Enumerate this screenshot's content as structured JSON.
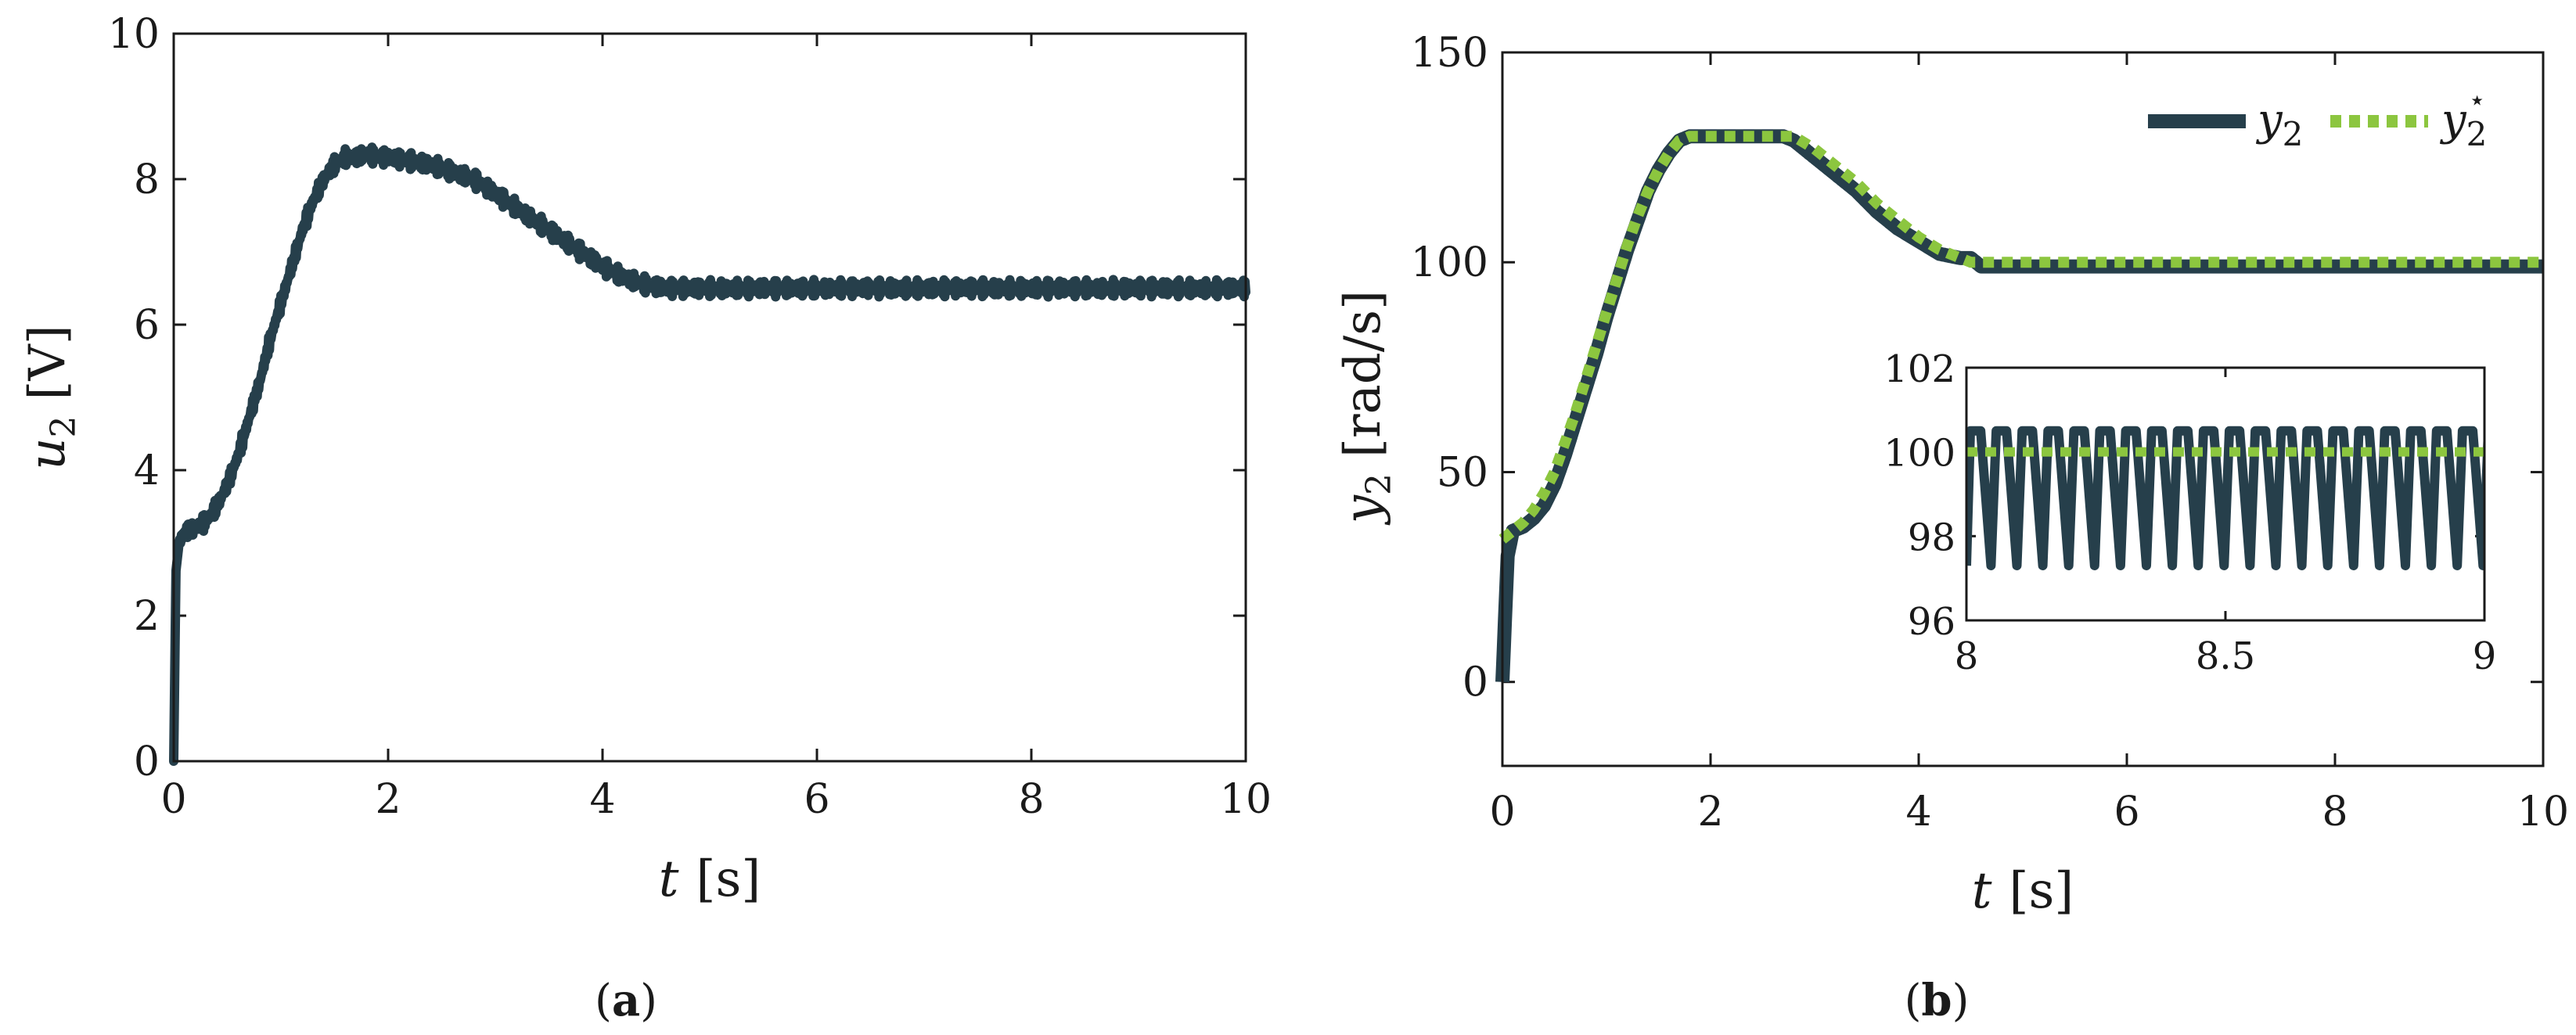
{
  "colors": {
    "measured": "#263f4b",
    "reference": "#8cc63f",
    "axis": "#1a1a1a"
  },
  "chart_data": [
    {
      "panel": "a",
      "caption_letter": "a",
      "type": "line",
      "xlabel_var": "t",
      "xlabel_unit": "[s]",
      "ylabel_var": "u",
      "ylabel_sub": "2",
      "ylabel_unit": "[V]",
      "xlim": [
        0,
        10
      ],
      "ylim": [
        0,
        10
      ],
      "xticks": [
        "0",
        "2",
        "4",
        "6",
        "8",
        "10"
      ],
      "yticks": [
        "0",
        "2",
        "4",
        "6",
        "8",
        "10"
      ],
      "grid": false,
      "series": [
        {
          "role": "measured",
          "noise_amplitude": 0.12,
          "x": [
            0,
            0.02,
            0.05,
            0.1,
            0.2,
            0.3,
            0.4,
            0.5,
            0.6,
            0.7,
            0.8,
            0.9,
            1.0,
            1.1,
            1.2,
            1.3,
            1.4,
            1.5,
            1.6,
            1.7,
            1.8,
            1.9,
            2.0,
            2.2,
            2.4,
            2.6,
            2.8,
            3.0,
            3.2,
            3.4,
            3.6,
            3.8,
            4.0,
            4.2,
            4.4,
            4.6,
            5.0,
            6.0,
            7.0,
            8.0,
            9.0,
            10.0
          ],
          "y": [
            0,
            2.6,
            3.0,
            3.15,
            3.2,
            3.3,
            3.5,
            3.8,
            4.2,
            4.7,
            5.2,
            5.8,
            6.3,
            6.8,
            7.3,
            7.7,
            8.0,
            8.2,
            8.3,
            8.3,
            8.35,
            8.3,
            8.3,
            8.25,
            8.2,
            8.1,
            8.0,
            7.8,
            7.6,
            7.4,
            7.2,
            7.0,
            6.8,
            6.65,
            6.55,
            6.5,
            6.5,
            6.5,
            6.5,
            6.5,
            6.5,
            6.5
          ]
        }
      ]
    },
    {
      "panel": "b",
      "caption_letter": "b",
      "type": "line",
      "xlabel_var": "t",
      "xlabel_unit": "[s]",
      "ylabel_var": "y",
      "ylabel_sub": "2",
      "ylabel_unit": "[rad/s]",
      "xlim": [
        0,
        10
      ],
      "ylim": [
        -20,
        150
      ],
      "xticks": [
        "0",
        "2",
        "4",
        "6",
        "8",
        "10"
      ],
      "yticks": [
        "0",
        "50",
        "100",
        "150"
      ],
      "grid": false,
      "legend_position": "top-right",
      "legend": [
        {
          "role": "measured",
          "var": "y",
          "sub": "2",
          "sup": ""
        },
        {
          "role": "reference",
          "var": "y",
          "sub": "2",
          "sup": "⋆"
        }
      ],
      "series": [
        {
          "role": "measured",
          "x": [
            0,
            0.05,
            0.1,
            0.2,
            0.3,
            0.4,
            0.5,
            0.6,
            0.7,
            0.8,
            0.9,
            1.0,
            1.1,
            1.2,
            1.3,
            1.4,
            1.5,
            1.6,
            1.7,
            1.8,
            2.0,
            2.2,
            2.4,
            2.6,
            2.7,
            2.8,
            3.0,
            3.2,
            3.4,
            3.6,
            3.8,
            4.0,
            4.2,
            4.4,
            4.5,
            4.6,
            5.0,
            6.0,
            7.0,
            8.0,
            9.0,
            10.0
          ],
          "y": [
            0,
            30,
            36,
            37,
            39,
            42,
            47,
            54,
            62,
            70,
            78,
            87,
            95,
            103,
            110,
            117,
            122,
            126,
            129,
            130,
            130,
            130,
            130,
            130,
            130,
            129,
            125,
            121,
            117,
            112,
            108,
            105,
            102,
            101,
            101,
            99,
            99,
            99,
            99,
            99,
            99,
            99
          ]
        },
        {
          "role": "reference",
          "x": [
            0,
            0.1,
            0.2,
            0.3,
            0.4,
            0.5,
            0.6,
            0.7,
            0.8,
            0.9,
            1.0,
            1.1,
            1.2,
            1.3,
            1.4,
            1.5,
            1.6,
            1.7,
            1.8,
            2.0,
            2.4,
            2.8,
            3.0,
            3.2,
            3.4,
            3.6,
            3.8,
            4.0,
            4.2,
            4.4,
            4.5,
            4.6,
            5.0,
            6.0,
            7.0,
            8.0,
            9.0,
            10.0
          ],
          "y": [
            34,
            36,
            38,
            41,
            45,
            50,
            57,
            64,
            72,
            80,
            88,
            96,
            104,
            111,
            117,
            122,
            126,
            129,
            130,
            130,
            130,
            130,
            127,
            123,
            119,
            114,
            110,
            106,
            103,
            101,
            100,
            100,
            100,
            100,
            100,
            100,
            100,
            100
          ]
        }
      ],
      "inset": {
        "xlim": [
          8,
          9
        ],
        "ylim": [
          96,
          102
        ],
        "xticks": [
          "8",
          "8.5",
          "9"
        ],
        "yticks": [
          "96",
          "98",
          "100",
          "102"
        ],
        "measured_high": 100.5,
        "measured_low": 97.3,
        "oscillation_period": 0.05,
        "reference_value": 100
      }
    }
  ]
}
